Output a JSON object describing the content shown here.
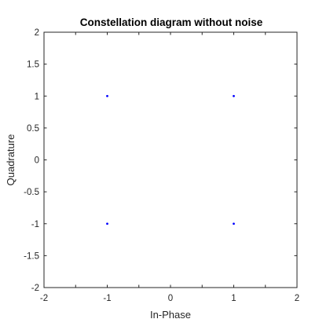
{
  "chart_data": {
    "type": "scatter",
    "title": "Constellation diagram without noise",
    "xlabel": "In-Phase",
    "ylabel": "Quadrature",
    "xlim": [
      -2,
      2
    ],
    "ylim": [
      -2,
      2
    ],
    "xticks": [
      -2,
      -1.5,
      -1,
      -0.5,
      0,
      0.5,
      1,
      1.5,
      2
    ],
    "xtick_labels": [
      "-2",
      "",
      "-1",
      "",
      "0",
      "",
      "1",
      "",
      "2"
    ],
    "yticks": [
      -2,
      -1.5,
      -1,
      -0.5,
      0,
      0.5,
      1,
      1.5,
      2
    ],
    "ytick_labels": [
      "-2",
      "-1.5",
      "-1",
      "-0.5",
      "0",
      "0.5",
      "1",
      "1.5",
      "2"
    ],
    "grid": false,
    "series": [
      {
        "points": [
          {
            "x": -1,
            "y": 1
          },
          {
            "x": 1,
            "y": 1
          },
          {
            "x": -1,
            "y": -1
          },
          {
            "x": 1,
            "y": -1
          }
        ],
        "color": "#0000ff"
      }
    ]
  }
}
